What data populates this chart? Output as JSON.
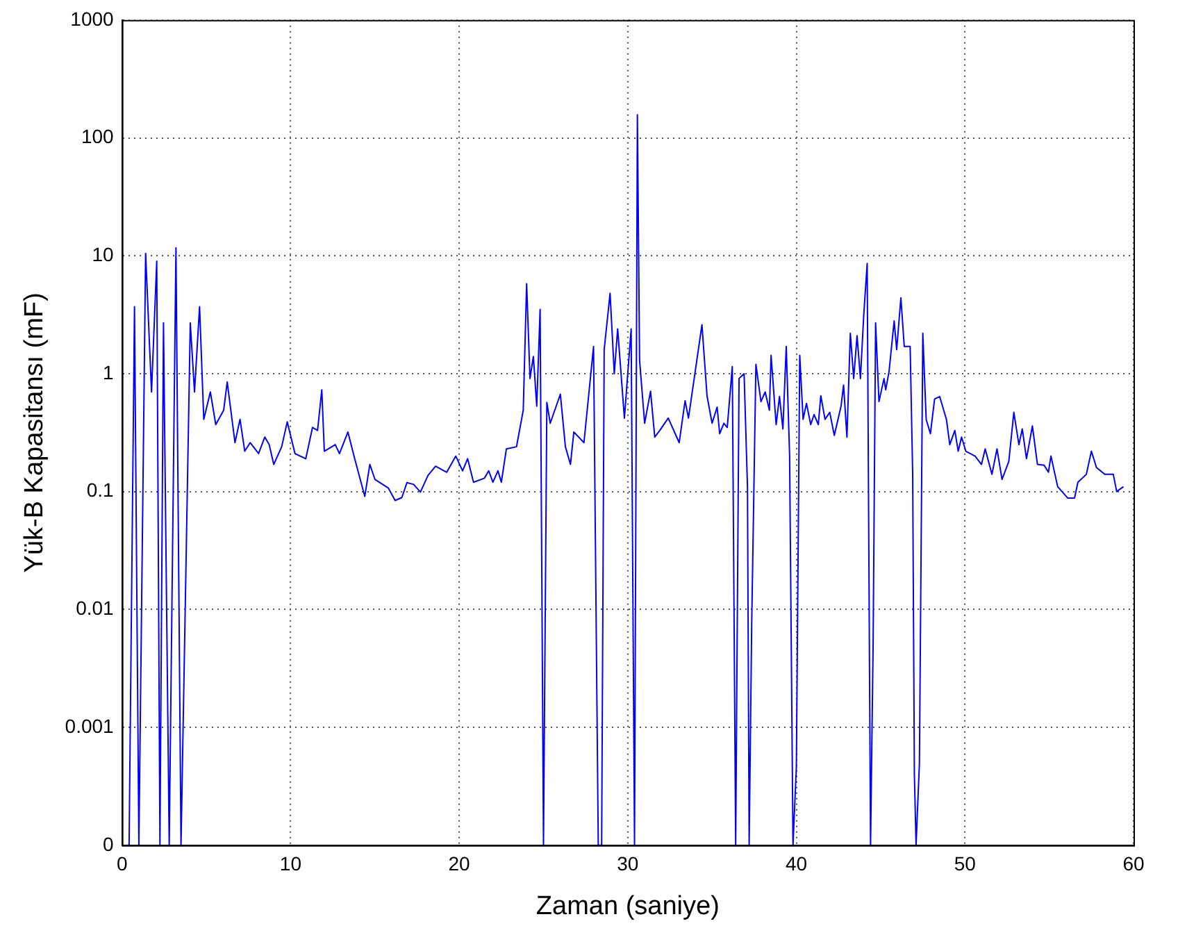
{
  "chart_data": {
    "type": "line",
    "xlabel": "Zaman (saniye)",
    "ylabel": "Yük-B Kapasitansı (mF)",
    "log": "y",
    "grid": true,
    "legend": false,
    "marker": "none",
    "line_style": "solid",
    "xlim": [
      0,
      60
    ],
    "xticks": [
      0,
      10,
      20,
      30,
      40,
      50,
      60
    ],
    "ylim": [
      0.0001,
      1000
    ],
    "yticks": [
      {
        "value": 0.0001,
        "label": "0"
      },
      0.001,
      0.01,
      0.1,
      1,
      10,
      100,
      1000
    ],
    "series": [
      {
        "color": "#0000ff",
        "x": [
          0.3,
          0.42,
          0.74,
          1.0,
          1.4,
          1.75,
          2.06,
          2.25,
          2.46,
          2.8,
          3.2,
          3.5,
          4.05,
          4.3,
          4.6,
          4.85,
          5.24,
          5.56,
          6.03,
          6.24,
          6.7,
          7.0,
          7.28,
          7.6,
          8.1,
          8.47,
          8.73,
          9.0,
          9.47,
          9.8,
          10.26,
          10.9,
          11.3,
          11.6,
          11.85,
          12.0,
          12.65,
          12.9,
          13.4,
          13.8,
          14.4,
          14.7,
          15.0,
          15.8,
          16.2,
          16.6,
          16.9,
          17.3,
          17.7,
          18.15,
          18.6,
          19.26,
          19.8,
          20.2,
          20.5,
          20.85,
          21.5,
          21.75,
          22.0,
          22.3,
          22.5,
          22.8,
          23.4,
          23.8,
          24.0,
          24.2,
          24.4,
          24.6,
          24.8,
          24.9,
          25.0,
          25.2,
          25.4,
          26.0,
          26.3,
          26.6,
          26.8,
          27.4,
          27.97,
          28.25,
          28.45,
          28.6,
          28.95,
          29.2,
          29.4,
          29.8,
          30.2,
          30.4,
          30.57,
          30.7,
          31.0,
          31.35,
          31.6,
          31.9,
          32.4,
          33.05,
          33.4,
          33.6,
          34.4,
          34.7,
          35.0,
          35.3,
          35.45,
          35.7,
          35.9,
          36.2,
          36.3,
          36.4,
          36.6,
          36.9,
          37.1,
          37.2,
          37.35,
          37.6,
          37.9,
          38.15,
          38.4,
          38.5,
          38.8,
          39.0,
          39.2,
          39.4,
          39.6,
          39.8,
          40.0,
          40.2,
          40.4,
          40.6,
          40.85,
          41.05,
          41.3,
          41.45,
          41.7,
          41.98,
          42.25,
          42.65,
          42.8,
          43.0,
          43.2,
          43.4,
          43.6,
          43.8,
          44.0,
          44.2,
          44.3,
          44.4,
          44.55,
          44.7,
          44.9,
          45.2,
          45.3,
          45.5,
          45.8,
          45.95,
          46.2,
          46.4,
          46.75,
          46.9,
          47.0,
          47.1,
          47.3,
          47.5,
          47.7,
          47.95,
          48.2,
          48.5,
          48.9,
          49.1,
          49.4,
          49.6,
          49.8,
          50.05,
          50.6,
          50.98,
          51.2,
          51.6,
          51.9,
          52.2,
          52.6,
          52.9,
          53.2,
          53.4,
          53.65,
          54.0,
          54.3,
          54.7,
          54.95,
          55.1,
          55.5,
          56.1,
          56.5,
          56.7,
          57.2,
          57.5,
          57.8,
          58.3,
          58.8,
          59.0,
          59.4
        ],
        "values": [
          0.0001,
          0.0001,
          3.7,
          0.0001,
          10.5,
          0.7,
          9.0,
          0.0001,
          2.7,
          0.0001,
          11.7,
          0.0001,
          2.7,
          0.7,
          3.7,
          0.41,
          0.7,
          0.37,
          0.49,
          0.85,
          0.26,
          0.41,
          0.22,
          0.26,
          0.21,
          0.29,
          0.25,
          0.17,
          0.24,
          0.39,
          0.21,
          0.19,
          0.35,
          0.33,
          0.73,
          0.22,
          0.25,
          0.21,
          0.32,
          0.19,
          0.091,
          0.17,
          0.127,
          0.107,
          0.084,
          0.089,
          0.119,
          0.115,
          0.099,
          0.137,
          0.164,
          0.146,
          0.2,
          0.15,
          0.19,
          0.12,
          0.13,
          0.15,
          0.12,
          0.15,
          0.12,
          0.23,
          0.24,
          0.49,
          5.8,
          0.91,
          1.4,
          0.53,
          3.5,
          0.021,
          0.0001,
          0.57,
          0.38,
          0.67,
          0.24,
          0.17,
          0.32,
          0.26,
          1.7,
          0.0001,
          0.0001,
          1.6,
          4.8,
          1.0,
          2.4,
          0.42,
          2.4,
          0.0001,
          157,
          1.3,
          0.38,
          0.71,
          0.29,
          0.33,
          0.42,
          0.26,
          0.59,
          0.42,
          2.6,
          0.65,
          0.38,
          0.52,
          0.31,
          0.38,
          0.35,
          1.15,
          0.011,
          0.0001,
          0.91,
          1.0,
          0.11,
          0.0001,
          0.0074,
          1.2,
          0.58,
          0.7,
          0.49,
          1.43,
          0.37,
          0.64,
          0.34,
          1.7,
          0.2,
          0.0001,
          0.00046,
          1.43,
          0.41,
          0.56,
          0.37,
          0.45,
          0.37,
          0.65,
          0.41,
          0.47,
          0.3,
          0.53,
          0.8,
          0.29,
          2.2,
          0.91,
          2.1,
          0.91,
          3.2,
          8.6,
          0.03,
          0.0001,
          0.0046,
          2.7,
          0.58,
          0.91,
          0.73,
          1.05,
          2.8,
          1.6,
          4.4,
          1.7,
          1.7,
          0.14,
          0.0004,
          0.0001,
          0.0005,
          2.2,
          0.41,
          0.31,
          0.61,
          0.64,
          0.41,
          0.25,
          0.33,
          0.22,
          0.29,
          0.22,
          0.2,
          0.17,
          0.23,
          0.14,
          0.23,
          0.127,
          0.18,
          0.47,
          0.25,
          0.34,
          0.19,
          0.36,
          0.17,
          0.167,
          0.146,
          0.2,
          0.11,
          0.088,
          0.088,
          0.12,
          0.14,
          0.22,
          0.16,
          0.14,
          0.14,
          0.1,
          0.11
        ]
      }
    ]
  }
}
